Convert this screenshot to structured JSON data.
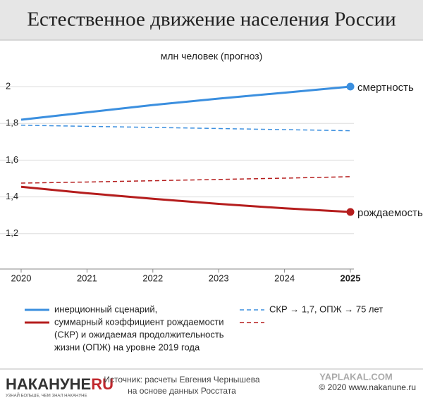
{
  "chart_data": {
    "type": "line",
    "title": "Естественное движение населения России",
    "subtitle": "млн человек (прогноз)",
    "x": [
      2020,
      2021,
      2022,
      2023,
      2024,
      2025
    ],
    "xlim": [
      2020,
      2025
    ],
    "xticks": [
      2020,
      2021,
      2022,
      2023,
      2024,
      2025
    ],
    "ylim": [
      1,
      2
    ],
    "yticks": [
      {
        "value": 1.2,
        "label": "1,2"
      },
      {
        "value": 1.4,
        "label": "1,4"
      },
      {
        "value": 1.6,
        "label": "1,6"
      },
      {
        "value": 1.8,
        "label": "1,8"
      },
      {
        "value": 2,
        "label": "2"
      }
    ],
    "grid": true,
    "series": [
      {
        "color": "#3b8fdf",
        "dashed": false,
        "end_label": "смертность",
        "values": [
          1.82,
          1.86,
          1.9,
          1.935,
          1.967,
          2.0
        ]
      },
      {
        "color": "#3b8fdf",
        "dashed": true,
        "values": [
          1.79,
          1.784,
          1.778,
          1.772,
          1.766,
          1.76
        ]
      },
      {
        "color": "#b51d1d",
        "dashed": true,
        "values": [
          1.475,
          1.481,
          1.488,
          1.495,
          1.502,
          1.51
        ]
      },
      {
        "color": "#b51d1d",
        "dashed": false,
        "end_label": "рождаемость",
        "values": [
          1.455,
          1.42,
          1.39,
          1.362,
          1.338,
          1.318
        ]
      }
    ],
    "legend": [
      {
        "dashed": false,
        "lines": [
          "инерционный сценарий,",
          "суммарный коэффициент рождаемости",
          "(СКР) и  ожидаемая продолжительность",
          "жизни (ОПЖ) на уровне 2019 года"
        ]
      },
      {
        "dashed": true,
        "lines": [
          "СКР → 1,7, ОПЖ → 75 лет"
        ]
      }
    ]
  },
  "footer": {
    "logo": "НАКАНУНЕ",
    "logo_suffix": "RU",
    "slogan": "УЗНАЙ БОЛЬШЕ, ЧЕМ ЗНАЛ НАКАНУНЕ",
    "source": [
      "Источник: расчеты Евгения Чернышева",
      "на основе данных Росстата"
    ],
    "watermark": "YAPLAKAL.COM",
    "copyright": "© 2020 www.nakanune.ru"
  }
}
